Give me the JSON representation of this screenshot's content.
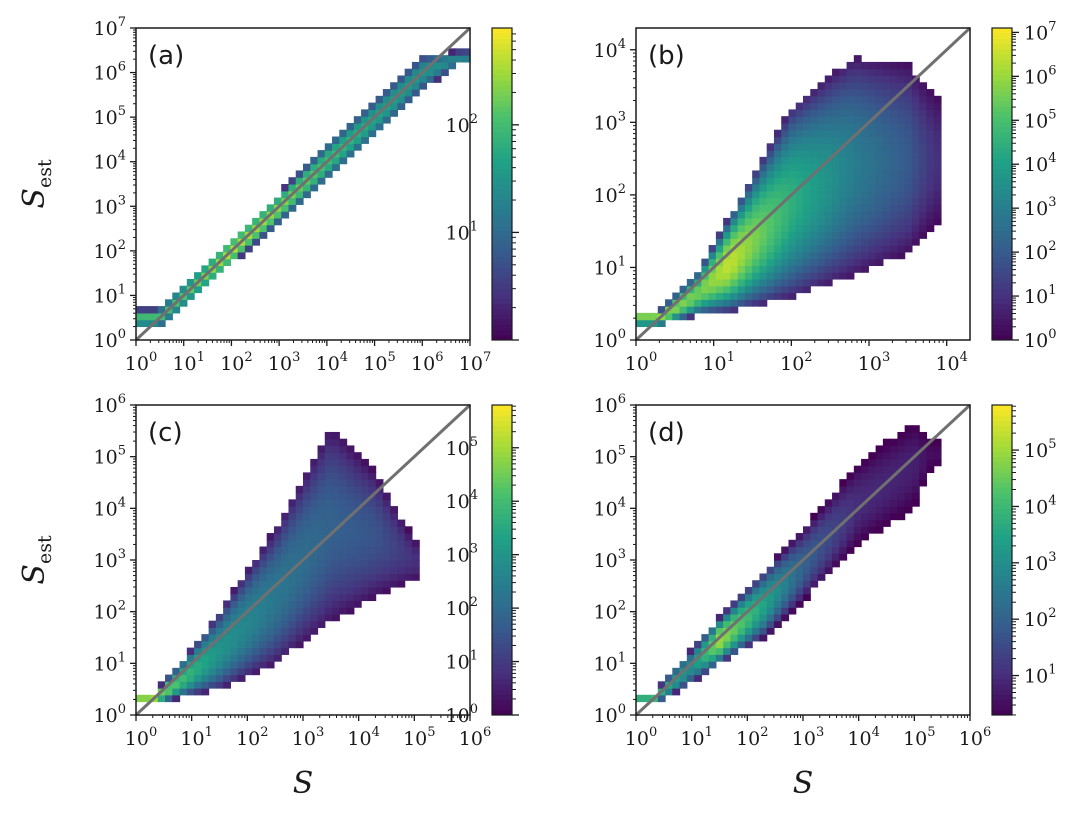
{
  "colormap": [
    "#440154",
    "#46327e",
    "#365c8d",
    "#277f8e",
    "#1fa187",
    "#4ac16d",
    "#a0da39",
    "#fde725"
  ],
  "chart_data": [
    {
      "type": "heatmap",
      "panel_label": "(a)",
      "xlabel": "S",
      "ylabel": "S",
      "ylabel_subscript": "est",
      "xscale": "log",
      "yscale": "log",
      "xlim_exp": [
        0,
        7
      ],
      "ylim_exp": [
        0,
        7
      ],
      "x_ticks": [
        {
          "base": "10",
          "exp": "0"
        },
        {
          "base": "10",
          "exp": "1"
        },
        {
          "base": "10",
          "exp": "2"
        },
        {
          "base": "10",
          "exp": "3"
        },
        {
          "base": "10",
          "exp": "4"
        },
        {
          "base": "10",
          "exp": "5"
        },
        {
          "base": "10",
          "exp": "6"
        },
        {
          "base": "10",
          "exp": "7"
        }
      ],
      "y_ticks": [
        {
          "base": "10",
          "exp": "0"
        },
        {
          "base": "10",
          "exp": "1"
        },
        {
          "base": "10",
          "exp": "2"
        },
        {
          "base": "10",
          "exp": "3"
        },
        {
          "base": "10",
          "exp": "4"
        },
        {
          "base": "10",
          "exp": "5"
        },
        {
          "base": "10",
          "exp": "6"
        },
        {
          "base": "10",
          "exp": "7"
        }
      ],
      "diagonal_line": {
        "from_exp": 0,
        "to_exp": 7,
        "color": "#707070"
      },
      "colorbar": {
        "scale": "log",
        "min_exp": 0,
        "max_exp": 2.9,
        "ticks": [
          {
            "base": "10",
            "exp": "1"
          },
          {
            "base": "10",
            "exp": "2"
          }
        ]
      },
      "distribution": {
        "x_range_exp": [
          0,
          6.8
        ],
        "bands": [
          {
            "x_exp": 0.5,
            "low_exp": 0.3,
            "high_exp": 0.7,
            "peak_log_count": 2.0
          },
          {
            "x_exp": 1.0,
            "low_exp": 0.75,
            "high_exp": 1.25,
            "peak_log_count": 2.1
          },
          {
            "x_exp": 2.0,
            "low_exp": 1.7,
            "high_exp": 2.3,
            "peak_log_count": 2.6
          },
          {
            "x_exp": 3.0,
            "low_exp": 2.65,
            "high_exp": 3.3,
            "peak_log_count": 2.4
          },
          {
            "x_exp": 4.0,
            "low_exp": 3.6,
            "high_exp": 4.4,
            "peak_log_count": 2.0
          },
          {
            "x_exp": 5.0,
            "low_exp": 4.55,
            "high_exp": 5.4,
            "peak_log_count": 1.7
          },
          {
            "x_exp": 6.0,
            "low_exp": 5.6,
            "high_exp": 6.4,
            "peak_log_count": 1.5
          },
          {
            "x_exp": 6.8,
            "low_exp": 6.2,
            "high_exp": 6.5,
            "peak_log_count": 1.3
          }
        ]
      }
    },
    {
      "type": "heatmap",
      "panel_label": "(b)",
      "xlabel": "S",
      "ylabel": "S",
      "ylabel_subscript": "est",
      "xscale": "log",
      "yscale": "log",
      "xlim_exp": [
        0,
        4.3
      ],
      "ylim_exp": [
        0,
        4.3
      ],
      "x_ticks": [
        {
          "base": "10",
          "exp": "0"
        },
        {
          "base": "10",
          "exp": "1"
        },
        {
          "base": "10",
          "exp": "2"
        },
        {
          "base": "10",
          "exp": "3"
        },
        {
          "base": "10",
          "exp": "4"
        }
      ],
      "y_ticks": [
        {
          "base": "10",
          "exp": "0"
        },
        {
          "base": "10",
          "exp": "1"
        },
        {
          "base": "10",
          "exp": "2"
        },
        {
          "base": "10",
          "exp": "3"
        },
        {
          "base": "10",
          "exp": "4"
        }
      ],
      "diagonal_line": {
        "from_exp": 0,
        "to_exp": 4.3,
        "color": "#707070"
      },
      "colorbar": {
        "scale": "log",
        "min_exp": 0,
        "max_exp": 7.1,
        "ticks": [
          {
            "base": "10",
            "exp": "0"
          },
          {
            "base": "10",
            "exp": "1"
          },
          {
            "base": "10",
            "exp": "2"
          },
          {
            "base": "10",
            "exp": "3"
          },
          {
            "base": "10",
            "exp": "4"
          },
          {
            "base": "10",
            "exp": "5"
          },
          {
            "base": "10",
            "exp": "6"
          },
          {
            "base": "10",
            "exp": "7"
          }
        ]
      },
      "distribution": {
        "x_range_exp": [
          0,
          3.85
        ],
        "bands": [
          {
            "x_exp": 0.3,
            "low_exp": 0.2,
            "high_exp": 0.4,
            "peak_log_count": 6.0
          },
          {
            "x_exp": 0.8,
            "low_exp": 0.35,
            "high_exp": 0.95,
            "peak_log_count": 5.5
          },
          {
            "x_exp": 1.2,
            "low_exp": 0.4,
            "high_exp": 1.7,
            "peak_log_count": 6.5
          },
          {
            "x_exp": 2.0,
            "low_exp": 0.6,
            "high_exp": 3.2,
            "peak_log_count": 4.5
          },
          {
            "x_exp": 2.8,
            "low_exp": 0.9,
            "high_exp": 3.9,
            "peak_log_count": 3.0
          },
          {
            "x_exp": 3.5,
            "low_exp": 1.2,
            "high_exp": 3.8,
            "peak_log_count": 2.0
          },
          {
            "x_exp": 3.85,
            "low_exp": 1.6,
            "high_exp": 3.4,
            "peak_log_count": 1.0
          }
        ]
      }
    },
    {
      "type": "heatmap",
      "panel_label": "(c)",
      "xlabel": "S",
      "ylabel": "S",
      "ylabel_subscript": "est",
      "xscale": "log",
      "yscale": "log",
      "xlim_exp": [
        0,
        6
      ],
      "ylim_exp": [
        0,
        6
      ],
      "x_ticks": [
        {
          "base": "10",
          "exp": "0"
        },
        {
          "base": "10",
          "exp": "1"
        },
        {
          "base": "10",
          "exp": "2"
        },
        {
          "base": "10",
          "exp": "3"
        },
        {
          "base": "10",
          "exp": "4"
        },
        {
          "base": "10",
          "exp": "5"
        },
        {
          "base": "10",
          "exp": "6"
        }
      ],
      "y_ticks": [
        {
          "base": "10",
          "exp": "0"
        },
        {
          "base": "10",
          "exp": "1"
        },
        {
          "base": "10",
          "exp": "2"
        },
        {
          "base": "10",
          "exp": "3"
        },
        {
          "base": "10",
          "exp": "4"
        },
        {
          "base": "10",
          "exp": "5"
        },
        {
          "base": "10",
          "exp": "6"
        }
      ],
      "diagonal_line": {
        "from_exp": 0,
        "to_exp": 6,
        "color": "#707070"
      },
      "colorbar": {
        "scale": "log",
        "min_exp": 0,
        "max_exp": 5.8,
        "ticks": [
          {
            "base": "10",
            "exp": "0"
          },
          {
            "base": "10",
            "exp": "1"
          },
          {
            "base": "10",
            "exp": "2"
          },
          {
            "base": "10",
            "exp": "3"
          },
          {
            "base": "10",
            "exp": "4"
          },
          {
            "base": "10",
            "exp": "5"
          }
        ]
      },
      "distribution": {
        "x_range_exp": [
          0,
          5
        ],
        "bands": [
          {
            "x_exp": 0.3,
            "low_exp": 0.2,
            "high_exp": 0.4,
            "peak_log_count": 5.0
          },
          {
            "x_exp": 0.8,
            "low_exp": 0.35,
            "high_exp": 1.0,
            "peak_log_count": 4.0
          },
          {
            "x_exp": 1.5,
            "low_exp": 0.5,
            "high_exp": 2.0,
            "peak_log_count": 3.0
          },
          {
            "x_exp": 2.5,
            "low_exp": 1.0,
            "high_exp": 3.6,
            "peak_log_count": 2.3
          },
          {
            "x_exp": 3.5,
            "low_exp": 1.8,
            "high_exp": 5.6,
            "peak_log_count": 1.8
          },
          {
            "x_exp": 4.3,
            "low_exp": 2.3,
            "high_exp": 4.7,
            "peak_log_count": 1.5
          },
          {
            "x_exp": 5.0,
            "low_exp": 2.6,
            "high_exp": 3.4,
            "peak_log_count": 0.8
          }
        ]
      }
    },
    {
      "type": "heatmap",
      "panel_label": "(d)",
      "xlabel": "S",
      "ylabel": "S",
      "ylabel_subscript": "est",
      "xscale": "log",
      "yscale": "log",
      "xlim_exp": [
        0,
        6
      ],
      "ylim_exp": [
        0,
        6
      ],
      "x_ticks": [
        {
          "base": "10",
          "exp": "0"
        },
        {
          "base": "10",
          "exp": "1"
        },
        {
          "base": "10",
          "exp": "2"
        },
        {
          "base": "10",
          "exp": "3"
        },
        {
          "base": "10",
          "exp": "4"
        },
        {
          "base": "10",
          "exp": "5"
        },
        {
          "base": "10",
          "exp": "6"
        }
      ],
      "y_ticks": [
        {
          "base": "10",
          "exp": "0"
        },
        {
          "base": "10",
          "exp": "1"
        },
        {
          "base": "10",
          "exp": "2"
        },
        {
          "base": "10",
          "exp": "3"
        },
        {
          "base": "10",
          "exp": "4"
        },
        {
          "base": "10",
          "exp": "5"
        },
        {
          "base": "10",
          "exp": "6"
        }
      ],
      "diagonal_line": {
        "from_exp": 0,
        "to_exp": 6,
        "color": "#707070"
      },
      "colorbar": {
        "scale": "log",
        "min_exp": 0.3,
        "max_exp": 5.8,
        "ticks": [
          {
            "base": "10",
            "exp": "1"
          },
          {
            "base": "10",
            "exp": "2"
          },
          {
            "base": "10",
            "exp": "3"
          },
          {
            "base": "10",
            "exp": "4"
          },
          {
            "base": "10",
            "exp": "5"
          }
        ]
      },
      "distribution": {
        "x_range_exp": [
          0,
          5.3
        ],
        "bands": [
          {
            "x_exp": 0.3,
            "low_exp": 0.2,
            "high_exp": 0.4,
            "peak_log_count": 4.0
          },
          {
            "x_exp": 1.0,
            "low_exp": 0.6,
            "high_exp": 1.3,
            "peak_log_count": 3.0
          },
          {
            "x_exp": 1.5,
            "low_exp": 1.0,
            "high_exp": 1.9,
            "peak_log_count": 5.0
          },
          {
            "x_exp": 2.3,
            "low_exp": 1.5,
            "high_exp": 2.8,
            "peak_log_count": 3.5
          },
          {
            "x_exp": 3.0,
            "low_exp": 2.2,
            "high_exp": 3.6,
            "peak_log_count": 2.0
          },
          {
            "x_exp": 4.0,
            "low_exp": 3.3,
            "high_exp": 4.9,
            "peak_log_count": 1.0
          },
          {
            "x_exp": 5.0,
            "low_exp": 4.0,
            "high_exp": 5.7,
            "peak_log_count": 0.8
          },
          {
            "x_exp": 5.3,
            "low_exp": 4.8,
            "high_exp": 5.3,
            "peak_log_count": 0.5
          }
        ]
      }
    }
  ]
}
